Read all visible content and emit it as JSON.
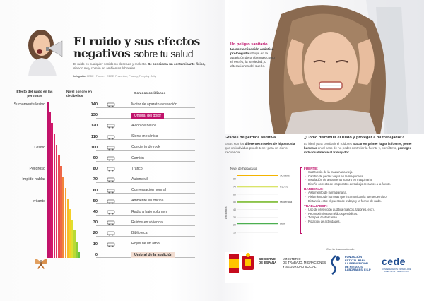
{
  "header": {
    "title_bold": "El ruido y sus efectos negativos",
    "title_light": "sobre tu salud",
    "intro_plain": "El ruido es cualquier sonido no deseado y molesto.",
    "intro_bold": "Se considera un contaminante físico,",
    "intro_rest": "siendo muy común en ambientes laborales.",
    "credits_label": "Infografía:",
    "credits_text": "CEDE · Fuente: · CEDE, Prevention, Pixabay, Freepik y Getty"
  },
  "columns": {
    "impact": "Efecto del ruido en las personas",
    "level": "Nivel sonoro en decibelios",
    "sources": "Sonidos cotidianos"
  },
  "scale": [
    {
      "db": "140",
      "source": "Motor de aparato a reacción",
      "icon": "plane-icon",
      "impact": "Sumamente lesivo"
    },
    {
      "db": "130",
      "source": "Umbral del dolor",
      "icon": "",
      "impact": "",
      "highlight": "pain"
    },
    {
      "db": "120",
      "source": "Avión de hélice",
      "icon": "propeller-plane-icon",
      "impact": ""
    },
    {
      "db": "110",
      "source": "Sierra mecánica",
      "icon": "saw-icon",
      "impact": ""
    },
    {
      "db": "100",
      "source": "Concierto de rock",
      "icon": "guitar-icon",
      "impact": "Lesivo"
    },
    {
      "db": "90",
      "source": "Camión",
      "icon": "truck-icon",
      "impact": ""
    },
    {
      "db": "80",
      "source": "Tráfico",
      "icon": "traffic-icon",
      "impact": "Peligroso"
    },
    {
      "db": "70",
      "source": "Automóvil",
      "icon": "car-icon",
      "impact": "Impide hablar"
    },
    {
      "db": "60",
      "source": "Conversación normal",
      "icon": "phone-icon",
      "impact": ""
    },
    {
      "db": "50",
      "source": "Ambiente en oficina",
      "icon": "office-icon",
      "impact": "Irritante"
    },
    {
      "db": "40",
      "source": "Radio a bajo volumen",
      "icon": "radio-icon",
      "impact": ""
    },
    {
      "db": "30",
      "source": "Ruidos en vivienda",
      "icon": "house-icon",
      "impact": ""
    },
    {
      "db": "20",
      "source": "Biblioteca",
      "icon": "books-icon",
      "impact": ""
    },
    {
      "db": "10",
      "source": "Hojas de un árbol",
      "icon": "leaf-icon",
      "impact": ""
    },
    {
      "db": "0",
      "source": "Umbral de la audición",
      "icon": "",
      "impact": "",
      "highlight": "hearing"
    }
  ],
  "peligro": {
    "title": "Un peligro sanitario",
    "bold": "La contaminación acústica prolongada",
    "rest": "influye en la aparición de problemas como el estrés, la ansiedad, o alteraciones del sueño."
  },
  "grados": {
    "title": "Grados de pérdida auditiva",
    "text1": "Estos son los",
    "bold": "diferentes niveles de hipoacusia",
    "text2": "que un individuo puede tener para un cierto frecuencia."
  },
  "como": {
    "title": "¿Cómo disminuir el ruido y proteger a mi trabajador?",
    "text1": "Lo ideal para combatir el ruido es",
    "bold1": "atacar en primer lugar la fuente, poner barreras",
    "text2": "en el caso de no poder controlar la fuente y, por último,",
    "bold2": "proteger individualmente al trabajador."
  },
  "chart_data": {
    "type": "line",
    "title": "Nivel de hipoacusia",
    "ylabel": "Decibelios",
    "yticks": [
      "80",
      "70",
      "60",
      "50",
      "40",
      "30",
      "20",
      "10"
    ],
    "ylim": [
      0,
      85
    ],
    "series": [
      {
        "name": "Sordera",
        "value": 85,
        "color": "#f4b400"
      },
      {
        "name": "Severa",
        "value": 70,
        "color": "#cddc39"
      },
      {
        "name": "Moderada",
        "value": 50,
        "color": "#8bc34a"
      },
      {
        "name": "Leve",
        "value": 22,
        "color": "#4caf50"
      }
    ]
  },
  "measures": [
    {
      "head": "FUENTE:",
      "items": [
        "Sustitución de la maquinaria vieja.",
        "Cambio de piezas viejas en la maquinaria.",
        "Instalación de aislamiento sonoro en maquinaria.",
        "Diseño correcto de los puestos de trabajo cercanos a la fuente."
      ]
    },
    {
      "head": "BARRERAS:",
      "items": [
        "Aislamiento de la maquinaria.",
        "Aislamiento de barreras que incomunican la fuente de ruido.",
        "Distancia entre el puesto de trabajo y la fuente de ruido."
      ]
    },
    {
      "head": "TRABAJADOR:",
      "items": [
        "Uso de protección auditiva (cascos, tapones, etc.).",
        "Reconocimientos médicos periódicos.",
        "Tiempos de descanso.",
        "Rotación de actividades."
      ]
    }
  ],
  "footer": {
    "financing": "Con la financiación de:",
    "gob1": "GOBIERNO",
    "gob2": "DE ESPAÑA",
    "min1": "MINISTERIO",
    "min2": "DE TRABAJO, MIGRACIONES",
    "min3": "Y SEGURIDAD SOCIAL",
    "fund1": "FUNDACIÓN",
    "fund2": "ESTATAL PARA",
    "fund3": "LA PREVENCIÓN",
    "fund4": "DE RIESGOS",
    "fund5": "LABORALES, F.S.P",
    "cede": "cede",
    "cede_sub": "CONFEDERACIÓN ESPAÑOLA DE DIRECTIVOS Y EJECUTIVOS"
  }
}
